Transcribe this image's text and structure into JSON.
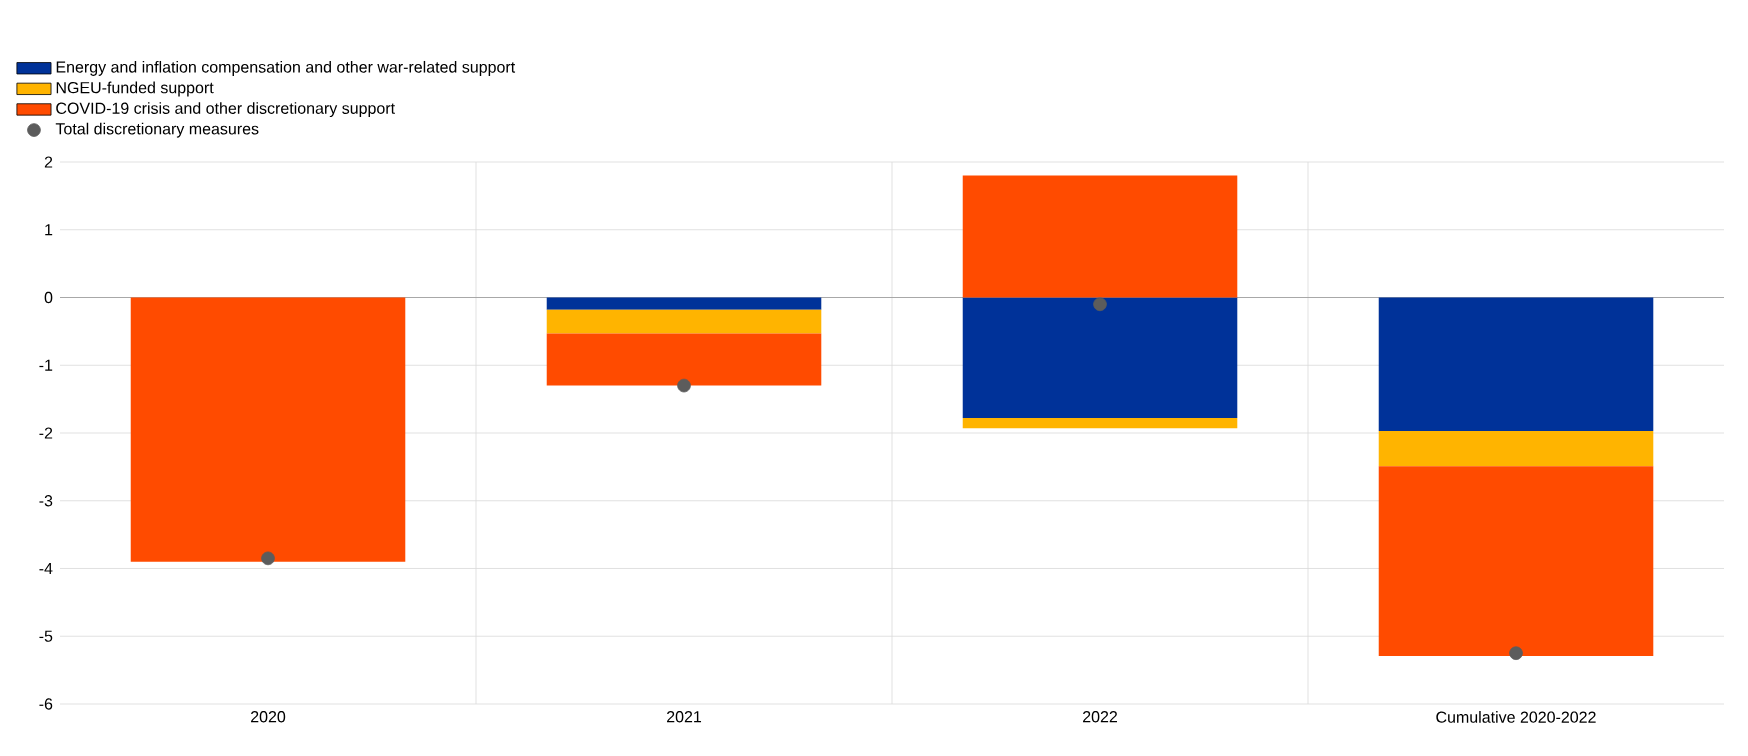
{
  "chart_data": {
    "type": "bar",
    "stacked": true,
    "categories": [
      "2020",
      "2021",
      "2022",
      "Cumulative 2020-2022"
    ],
    "series": [
      {
        "name": "Energy and inflation compensation and other war-related support",
        "color": "#003299",
        "values": [
          0,
          -0.18,
          -1.78,
          -1.97
        ]
      },
      {
        "name": "NGEU-funded support",
        "color": "#ffb400",
        "values": [
          0,
          -0.35,
          -0.15,
          -0.52
        ]
      },
      {
        "name": "COVID-19 crisis and other discretionary support",
        "color": "#ff4b00",
        "values": [
          -3.9,
          -0.77,
          1.8,
          -2.8
        ]
      },
      {
        "name": "Total discretionary measures",
        "type": "scatter",
        "color": "#5c5c5c",
        "values": [
          -3.85,
          -1.3,
          -0.1,
          -5.25
        ]
      }
    ],
    "ylim": [
      -6,
      2
    ],
    "yticks": [
      -6,
      -5,
      -4,
      -3,
      -2,
      -1,
      0,
      1,
      2
    ],
    "grid": true,
    "legend": "top left"
  }
}
